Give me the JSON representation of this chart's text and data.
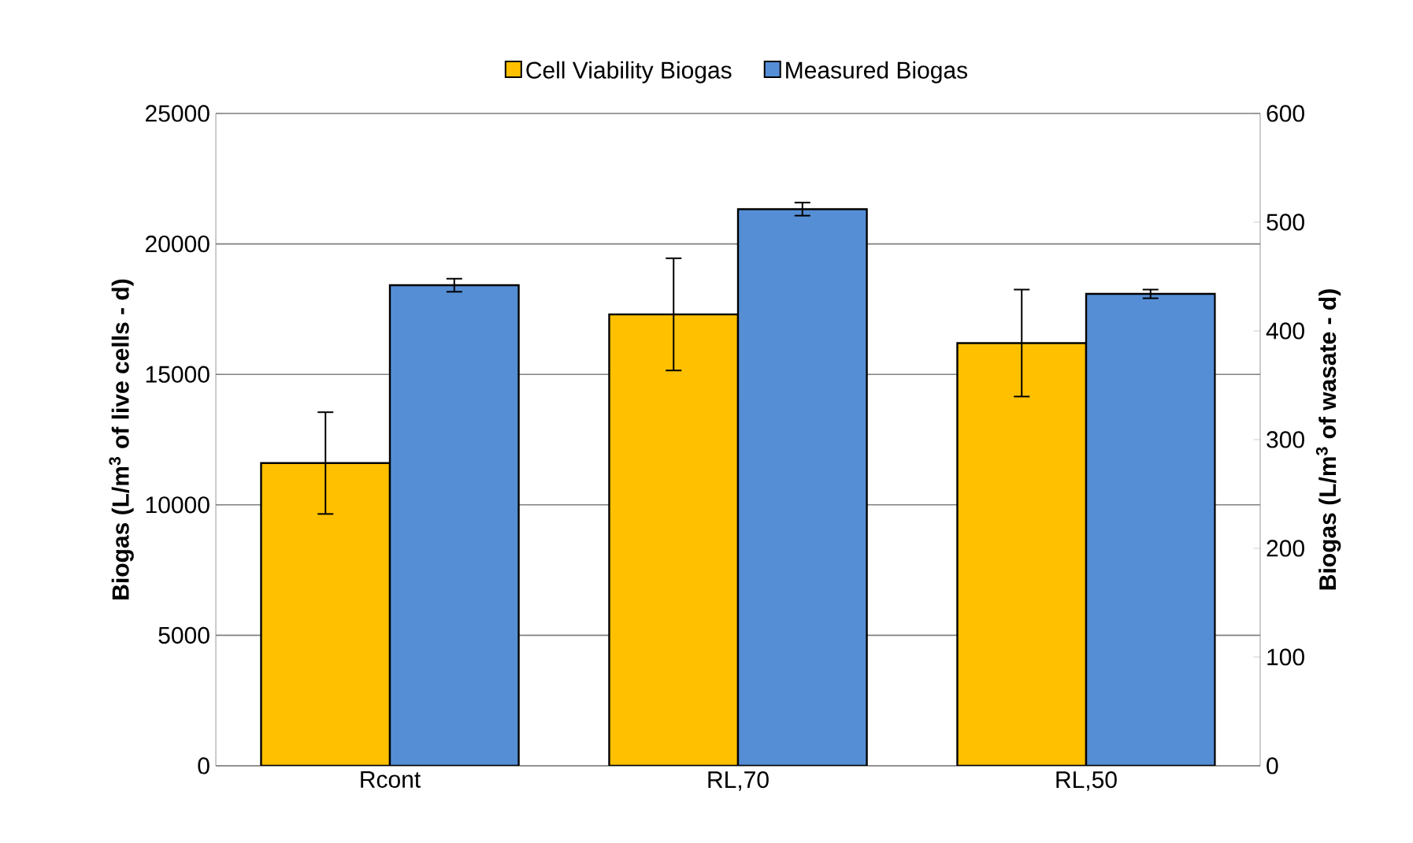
{
  "chart_data": {
    "type": "bar",
    "ylabel": "Biogas (L/m$^{3}$ of live cells - d)",
    "y2label": "Biogas (L/m$^{3}$ of wasate - d)",
    "categories": [
      "Rcont",
      "RL,70",
      "RL,50"
    ],
    "series": [
      {
        "name": "Cell Viability Biogas",
        "color": "#ffc000",
        "values": [
          11600,
          17300,
          16200
        ],
        "errors": [
          1950,
          2150,
          2050
        ]
      },
      {
        "name": "Measured Biogas",
        "color": "#558ed5",
        "values": [
          442,
          512,
          434
        ],
        "errors": [
          6,
          6,
          4
        ],
        "axis": "y2"
      }
    ],
    "ylim": [
      0,
      25000
    ],
    "yticks": [
      0,
      5000,
      10000,
      15000,
      20000,
      25000
    ],
    "y2lim": [
      0,
      600
    ],
    "y2ticks": [
      0,
      100,
      200,
      300,
      400,
      500,
      600
    ],
    "grid": "y",
    "legend": "top"
  }
}
